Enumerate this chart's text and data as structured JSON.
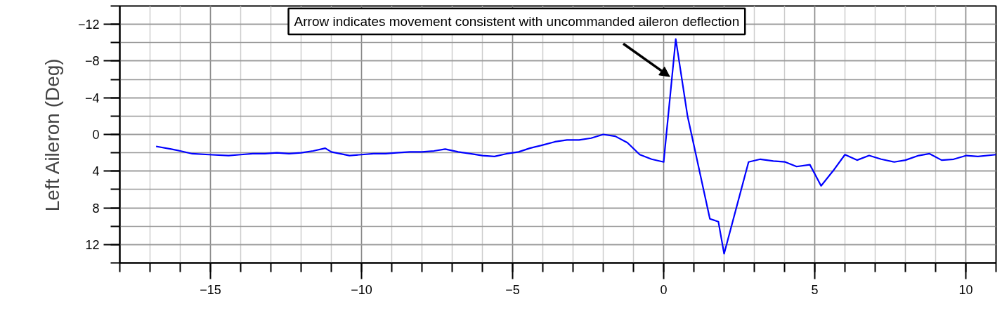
{
  "chart_data": {
    "type": "line",
    "ylabel": "Left Aileron (Deg)",
    "annotations": [
      {
        "text": "Arrow indicates movement consistent with uncommanded aileron deflection",
        "x": 0.2,
        "y": -6.3
      }
    ],
    "x": [
      -16.8,
      -16.3,
      -16.0,
      -15.6,
      -15.05,
      -14.4,
      -14.0,
      -13.6,
      -13.2,
      -12.8,
      -12.4,
      -12.0,
      -11.6,
      -11.2,
      -11.0,
      -10.4,
      -10.0,
      -9.6,
      -9.2,
      -8.85,
      -8.4,
      -8.0,
      -7.6,
      -7.23,
      -6.8,
      -6.4,
      -6.0,
      -5.6,
      -5.2,
      -4.8,
      -4.43,
      -4.05,
      -3.6,
      -3.2,
      -2.8,
      -2.4,
      -2.0,
      -1.6,
      -1.2,
      -0.79,
      -0.4,
      0.0,
      0.4,
      0.79,
      1.53,
      1.81,
      2.0,
      2.81,
      3.2,
      3.63,
      4.02,
      4.4,
      4.84,
      5.21,
      5.6,
      6.0,
      6.4,
      6.8,
      7.2,
      7.63,
      8.0,
      8.44,
      8.8,
      9.2,
      9.6,
      10.02,
      10.4,
      11.0
    ],
    "series": [
      {
        "color": "#0000ff",
        "values": [
          1.3,
          1.6,
          1.8,
          2.1,
          2.2,
          2.3,
          2.2,
          2.1,
          2.1,
          2.0,
          2.1,
          2.0,
          1.8,
          1.5,
          1.9,
          2.3,
          2.2,
          2.1,
          2.1,
          2.0,
          1.9,
          1.9,
          1.8,
          1.6,
          1.9,
          2.1,
          2.3,
          2.4,
          2.1,
          1.9,
          1.5,
          1.2,
          0.8,
          0.6,
          0.6,
          0.4,
          0.0,
          0.2,
          0.9,
          2.2,
          2.7,
          3.0,
          -10.4,
          -2.0,
          9.2,
          9.5,
          13.0,
          3.0,
          2.7,
          2.9,
          3.0,
          3.5,
          3.3,
          5.6,
          4.0,
          2.2,
          2.8,
          2.3,
          2.7,
          3.0,
          2.8,
          2.3,
          2.1,
          2.8,
          2.7,
          2.3,
          2.4,
          2.2
        ]
      }
    ],
    "xlim": [
      -18,
      11
    ],
    "ylim": [
      14,
      -14
    ],
    "xticks": [
      -15,
      -10,
      -5,
      0,
      5,
      10
    ],
    "yticks": [
      -12,
      -8,
      -4,
      0,
      4,
      8,
      12
    ],
    "grid": true,
    "line_style": "solid"
  }
}
